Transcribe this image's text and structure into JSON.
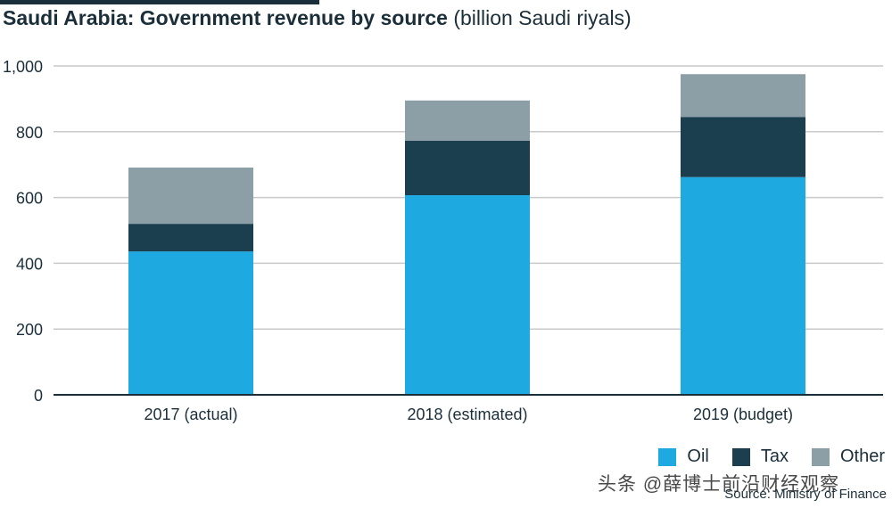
{
  "title": {
    "bold": "Saudi Arabia: Government revenue by source",
    "unit": "(billion Saudi riyals)"
  },
  "chart_data": {
    "type": "bar",
    "stacked": true,
    "title": "Saudi Arabia: Government revenue by source (billion Saudi riyals)",
    "categories": [
      "2017 (actual)",
      "2018 (estimated)",
      "2019 (budget)"
    ],
    "series": [
      {
        "name": "Oil",
        "color": "#1fa9e1",
        "values": [
          436,
          607,
          662
        ]
      },
      {
        "name": "Tax",
        "color": "#1c3f50",
        "values": [
          84,
          166,
          183
        ]
      },
      {
        "name": "Other",
        "color": "#8c9ea6",
        "values": [
          171,
          122,
          130
        ]
      }
    ],
    "yticks": [
      0,
      200,
      400,
      600,
      800,
      1000
    ],
    "ytick_labels": [
      "0",
      "200",
      "400",
      "600",
      "800",
      "1,000"
    ],
    "ylim": [
      0,
      1000
    ],
    "grid": true,
    "legend_position": "bottom-right",
    "xlabel": "",
    "ylabel": ""
  },
  "source": "Source: Ministry of Finance",
  "watermark": "头条 @薛博士前沿财经观察"
}
